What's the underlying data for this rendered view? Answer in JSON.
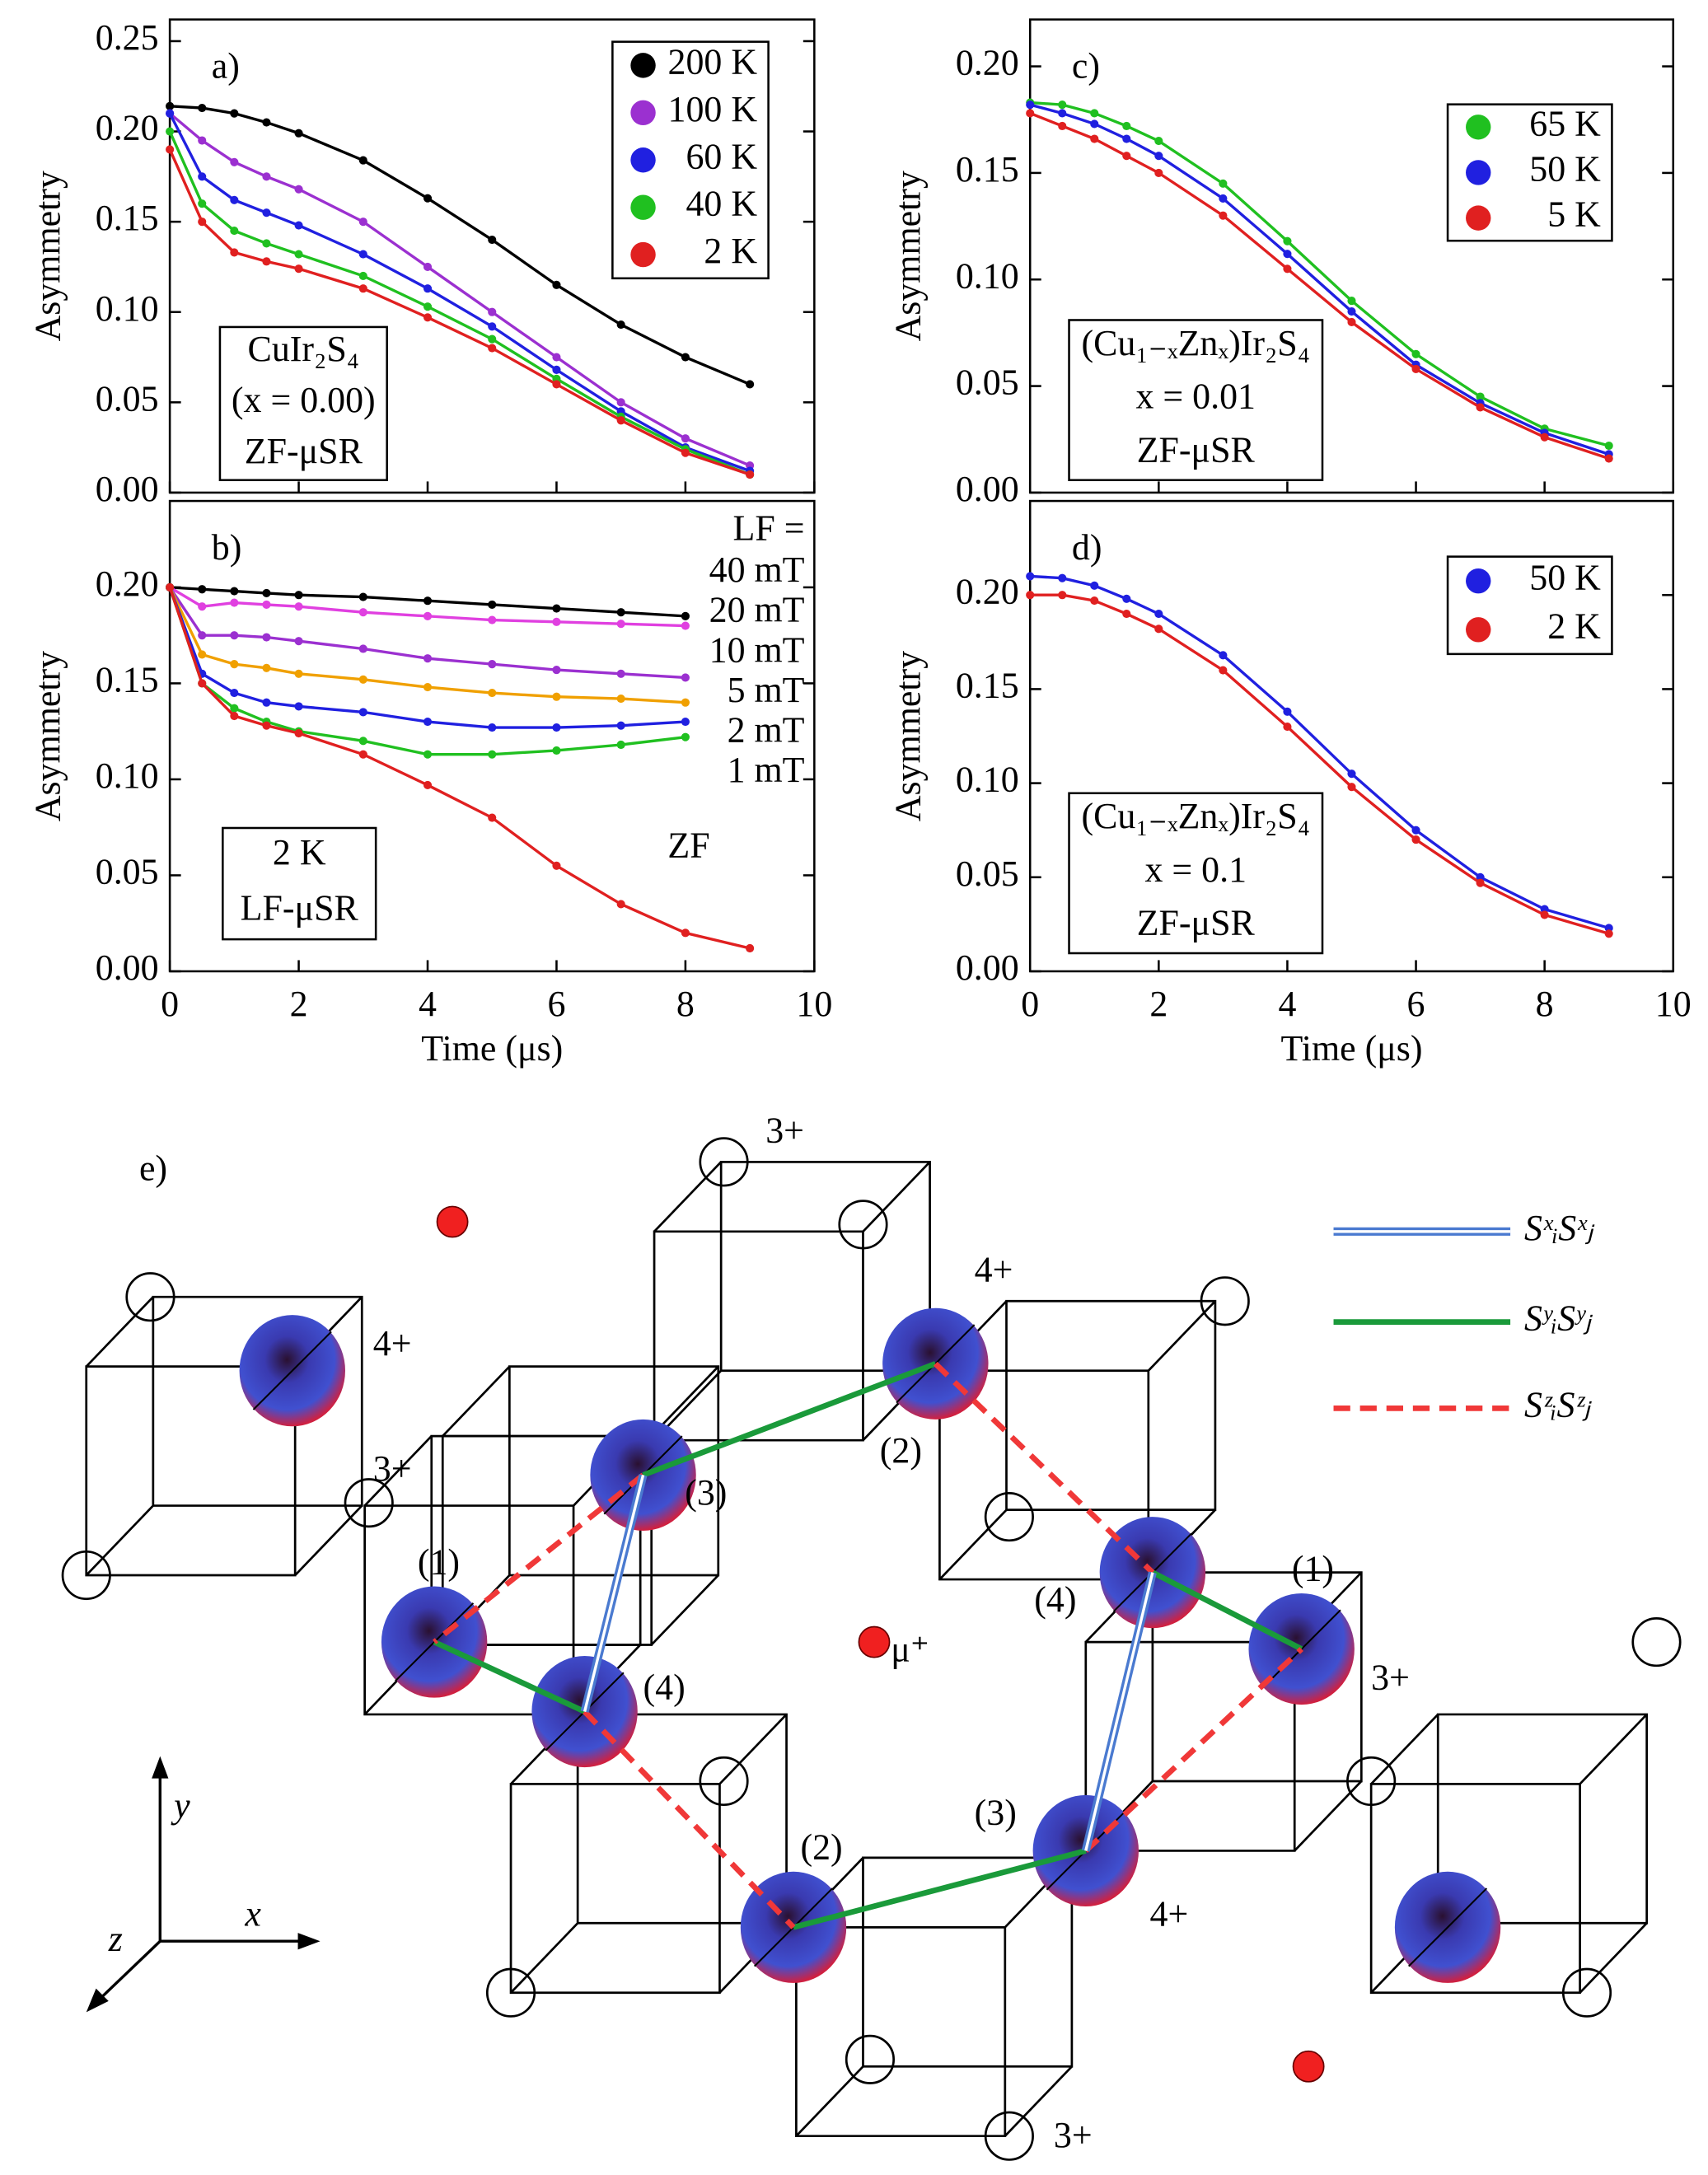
{
  "chart_data": [
    {
      "type": "scatter",
      "label": "a)",
      "ylabel": "Asymmetry",
      "legend": "upper right",
      "annotation": [
        "CuIr₂S₄",
        "(x = 0.00)",
        "ZF-μSR"
      ],
      "x": [
        0,
        0.5,
        1,
        1.5,
        2,
        3,
        4,
        5,
        6,
        7,
        8,
        9
      ],
      "xlim": [
        0,
        10
      ],
      "xticks": [
        0,
        2,
        4,
        6,
        8,
        10
      ],
      "show_xtick_labels": false,
      "ylim": [
        0,
        0.262
      ],
      "yticks": [
        {
          "value": 0,
          "label": "0.00"
        },
        {
          "value": 0.05,
          "label": "0.05"
        },
        {
          "value": 0.1,
          "label": "0.10"
        },
        {
          "value": 0.15,
          "label": "0.15"
        },
        {
          "value": 0.2,
          "label": "0.20"
        },
        {
          "value": 0.25,
          "label": "0.25"
        }
      ],
      "series": [
        {
          "name": "200 K",
          "color": "#000000",
          "values": [
            0.214,
            0.213,
            0.21,
            0.205,
            0.199,
            0.184,
            0.163,
            0.14,
            0.115,
            0.093,
            0.075,
            0.06
          ]
        },
        {
          "name": "100 K",
          "color": "#9b30d0",
          "values": [
            0.21,
            0.195,
            0.183,
            0.175,
            0.168,
            0.15,
            0.125,
            0.1,
            0.075,
            0.05,
            0.03,
            0.015
          ]
        },
        {
          "name": "60 K",
          "color": "#2020e0",
          "values": [
            0.21,
            0.175,
            0.162,
            0.155,
            0.148,
            0.132,
            0.113,
            0.092,
            0.068,
            0.045,
            0.025,
            0.012
          ]
        },
        {
          "name": "40 K",
          "color": "#20c020",
          "values": [
            0.2,
            0.16,
            0.145,
            0.138,
            0.132,
            0.12,
            0.103,
            0.085,
            0.063,
            0.042,
            0.024,
            0.01
          ]
        },
        {
          "name": "2 K",
          "color": "#e02020",
          "values": [
            0.19,
            0.15,
            0.133,
            0.128,
            0.124,
            0.113,
            0.097,
            0.08,
            0.06,
            0.04,
            0.022,
            0.01
          ]
        }
      ]
    },
    {
      "type": "scatter",
      "label": "b)",
      "ylabel": "Asymmetry",
      "xlabel": "Time (μs)",
      "legend": "right",
      "legend_title": "LF =",
      "annotation": [
        "2 K",
        "LF-μSR"
      ],
      "x": [
        0,
        0.5,
        1,
        1.5,
        2,
        3,
        4,
        5,
        6,
        7,
        8,
        9
      ],
      "xlim": [
        0,
        10
      ],
      "xticks": [
        0,
        2,
        4,
        6,
        8,
        10
      ],
      "show_xtick_labels": true,
      "ylim": [
        0,
        0.245
      ],
      "yticks": [
        {
          "value": 0,
          "label": "0.00"
        },
        {
          "value": 0.05,
          "label": "0.05"
        },
        {
          "value": 0.1,
          "label": "0.10"
        },
        {
          "value": 0.15,
          "label": "0.15"
        },
        {
          "value": 0.2,
          "label": "0.20"
        }
      ],
      "series": [
        {
          "name": "40 mT",
          "color": "#000000",
          "values": [
            0.2,
            0.199,
            0.198,
            0.197,
            0.196,
            0.195,
            0.193,
            0.191,
            0.189,
            0.187,
            0.185,
            null
          ]
        },
        {
          "name": "20 mT",
          "color": "#e040e0",
          "values": [
            0.2,
            0.19,
            0.192,
            0.191,
            0.19,
            0.187,
            0.185,
            0.183,
            0.182,
            0.181,
            0.18,
            null
          ]
        },
        {
          "name": "10 mT",
          "color": "#9b30d0",
          "values": [
            0.2,
            0.175,
            0.175,
            0.174,
            0.172,
            0.168,
            0.163,
            0.16,
            0.157,
            0.155,
            0.153,
            null
          ]
        },
        {
          "name": "5 mT",
          "color": "#f0a000",
          "values": [
            0.2,
            0.165,
            0.16,
            0.158,
            0.155,
            0.152,
            0.148,
            0.145,
            0.143,
            0.142,
            0.14,
            null
          ]
        },
        {
          "name": "2 mT",
          "color": "#2020e0",
          "values": [
            0.2,
            0.155,
            0.145,
            0.14,
            0.138,
            0.135,
            0.13,
            0.127,
            0.127,
            0.128,
            0.13,
            null
          ]
        },
        {
          "name": "1 mT",
          "color": "#20c020",
          "values": [
            0.2,
            0.15,
            0.137,
            0.13,
            0.125,
            0.12,
            0.113,
            0.113,
            0.115,
            0.118,
            0.122,
            null
          ]
        },
        {
          "name": "ZF",
          "color": "#e02020",
          "values": [
            0.2,
            0.15,
            0.133,
            0.128,
            0.124,
            0.113,
            0.097,
            0.08,
            0.055,
            0.035,
            0.02,
            0.012
          ]
        }
      ]
    },
    {
      "type": "scatter",
      "label": "c)",
      "ylabel": "Asymmetry",
      "legend": "upper right",
      "annotation": [
        "(Cu₁₋ₓZnₓ)Ir₂S₄",
        "x = 0.01",
        "ZF-μSR"
      ],
      "x": [
        0,
        0.5,
        1,
        1.5,
        2,
        3,
        4,
        5,
        6,
        7,
        8,
        9
      ],
      "xlim": [
        0,
        10
      ],
      "xticks": [
        0,
        2,
        4,
        6,
        8,
        10
      ],
      "show_xtick_labels": false,
      "ylim": [
        0,
        0.222
      ],
      "yticks": [
        {
          "value": 0,
          "label": "0.00"
        },
        {
          "value": 0.05,
          "label": "0.05"
        },
        {
          "value": 0.1,
          "label": "0.10"
        },
        {
          "value": 0.15,
          "label": "0.15"
        },
        {
          "value": 0.2,
          "label": "0.20"
        }
      ],
      "series": [
        {
          "name": "65 K",
          "color": "#20c020",
          "values": [
            0.183,
            0.182,
            0.178,
            0.172,
            0.165,
            0.145,
            0.118,
            0.09,
            0.065,
            0.045,
            0.03,
            0.022
          ]
        },
        {
          "name": "50 K",
          "color": "#2020e0",
          "values": [
            0.182,
            0.178,
            0.173,
            0.166,
            0.158,
            0.138,
            0.112,
            0.085,
            0.06,
            0.042,
            0.028,
            0.018
          ]
        },
        {
          "name": "5 K",
          "color": "#e02020",
          "values": [
            0.178,
            0.172,
            0.166,
            0.158,
            0.15,
            0.13,
            0.105,
            0.08,
            0.058,
            0.04,
            0.026,
            0.016
          ]
        }
      ]
    },
    {
      "type": "scatter",
      "label": "d)",
      "ylabel": "Asymmetry",
      "xlabel": "Time (μs)",
      "legend": "upper right",
      "annotation": [
        "(Cu₁₋ₓZnₓ)Ir₂S₄",
        "x = 0.1",
        "ZF-μSR"
      ],
      "x": [
        0,
        0.5,
        1,
        1.5,
        2,
        3,
        4,
        5,
        6,
        7,
        8,
        9
      ],
      "xlim": [
        0,
        10
      ],
      "xticks": [
        0,
        2,
        4,
        6,
        8,
        10
      ],
      "show_xtick_labels": true,
      "ylim": [
        0,
        0.25
      ],
      "yticks": [
        {
          "value": 0,
          "label": "0.00"
        },
        {
          "value": 0.05,
          "label": "0.05"
        },
        {
          "value": 0.1,
          "label": "0.10"
        },
        {
          "value": 0.15,
          "label": "0.15"
        },
        {
          "value": 0.2,
          "label": "0.20"
        }
      ],
      "series": [
        {
          "name": "50 K",
          "color": "#2020e0",
          "values": [
            0.21,
            0.209,
            0.205,
            0.198,
            0.19,
            0.168,
            0.138,
            0.105,
            0.075,
            0.05,
            0.033,
            0.023
          ]
        },
        {
          "name": "2 K",
          "color": "#e02020",
          "values": [
            0.2,
            0.2,
            0.197,
            0.19,
            0.182,
            0.16,
            0.13,
            0.098,
            0.07,
            0.047,
            0.03,
            0.02
          ]
        }
      ]
    }
  ],
  "diagram": {
    "label": "e)",
    "site_labels": [
      "3+",
      "4+",
      "3+",
      "4+",
      "(1)",
      "(3)",
      "(2)",
      "(4)",
      "(4)",
      "(1)",
      "3+",
      "(2)",
      "(3)",
      "4+",
      "3+"
    ],
    "muon": "μ⁺",
    "axes": [
      "y",
      "x",
      "z"
    ],
    "legend": [
      "SˣᵢSˣⱼ",
      "SʸᵢSʸⱼ",
      "SᶻᵢSᶻⱼ"
    ]
  }
}
